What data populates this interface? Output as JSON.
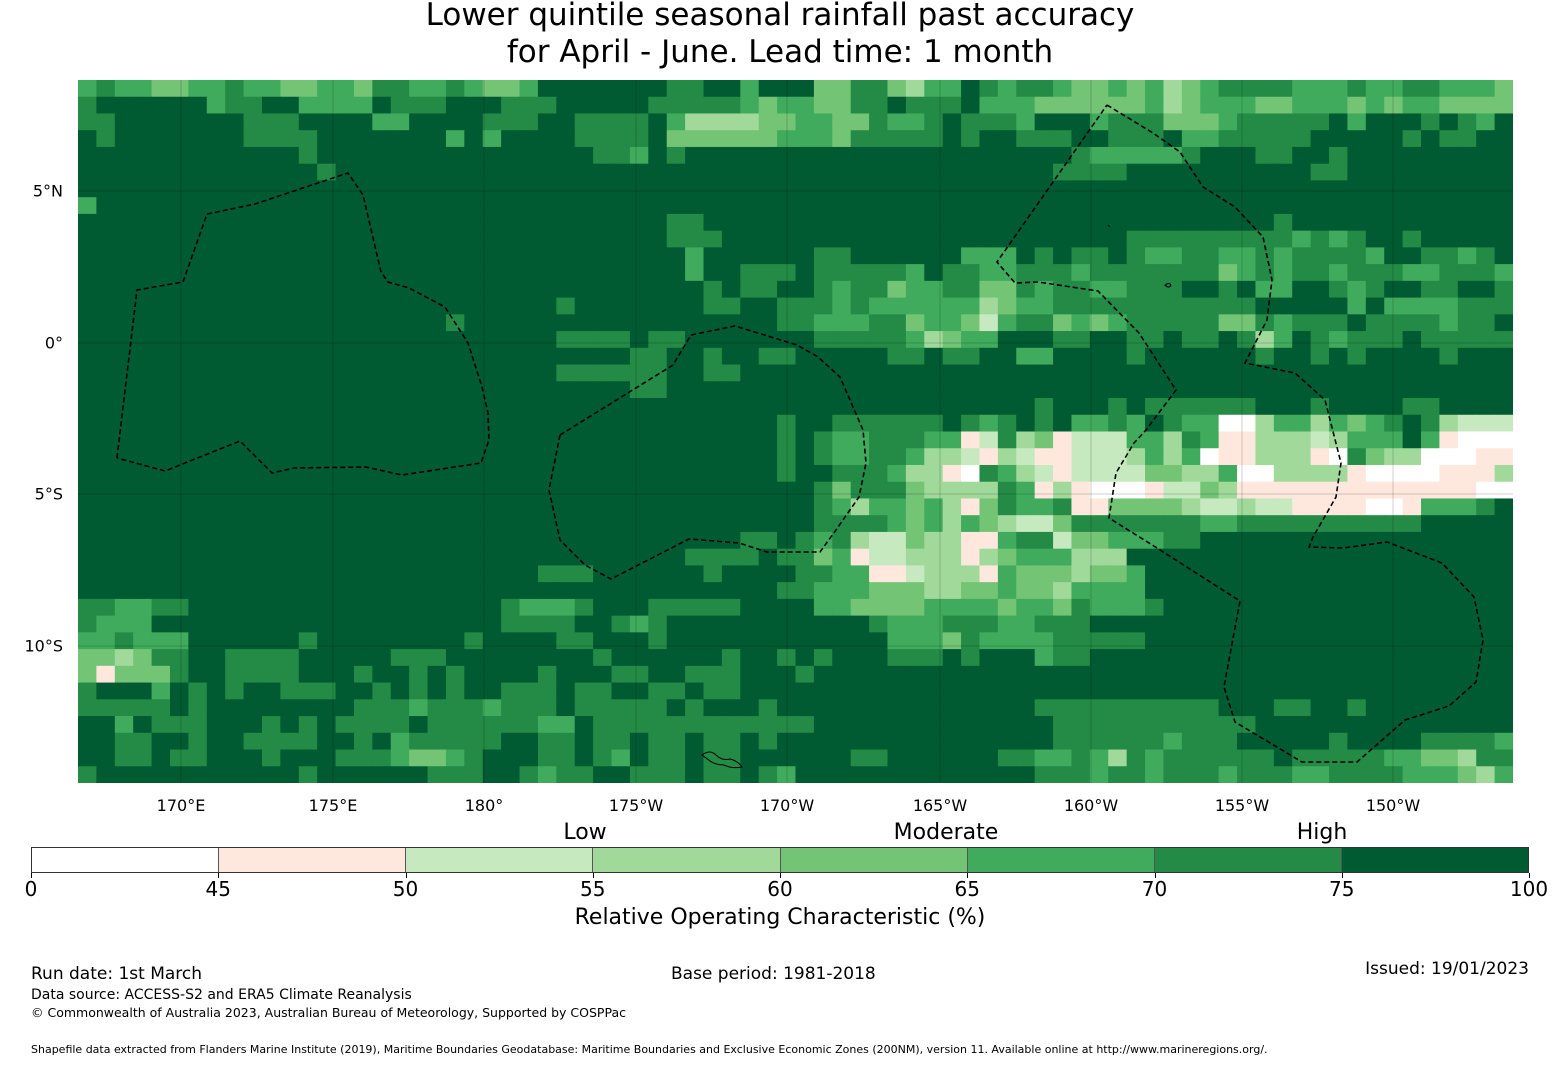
{
  "title": {
    "line1": "Lower quintile seasonal rainfall past accuracy",
    "line2": "for April - June. Lead time: 1 month"
  },
  "colorbar": {
    "ticks": [
      "0",
      "45",
      "50",
      "55",
      "60",
      "65",
      "70",
      "75",
      "100"
    ],
    "colors": [
      "#ffffff",
      "#fee8de",
      "#c7e9c0",
      "#a1d99b",
      "#74c476",
      "#41ab5d",
      "#238b45",
      "#005a32"
    ],
    "categories": {
      "low": "Low",
      "moderate": "Moderate",
      "high": "High"
    },
    "label": "Relative Operating Characteristic (%)"
  },
  "footer": {
    "run_date": "Run date: 1st March",
    "base_period": "Base period: 1981-2018",
    "issued": "Issued: 19/01/2023",
    "data_source": "Data source: ACCESS-S2 and ERA5 Climate Reanalysis",
    "copyright": "© Commonwealth of Australia 2023, Australian Bureau of Meteorology, Supported by COSPPac",
    "shapefile": "Shapefile data extracted from Flanders Marine Institute (2019), Maritime Boundaries Geodatabase: Maritime Boundaries and Exclusive Economic Zones (200NM), version 11. Available online at http://www.marineregions.org/."
  },
  "chart_data": {
    "type": "heatmap",
    "title": "Lower quintile seasonal rainfall past accuracy for April - June. Lead time: 1 month",
    "lat_ticks": [
      "5°N",
      "0°",
      "5°S",
      "10°S"
    ],
    "lon_ticks": [
      "170°E",
      "175°E",
      "180°",
      "175°W",
      "170°W",
      "165°W",
      "160°W",
      "155°W",
      "150°W"
    ],
    "bin_edges": [
      0,
      45,
      50,
      55,
      60,
      65,
      70,
      75,
      100
    ],
    "grid_note_bins": "each digit = colour bin index 0-7 (0: <45, 7: >=75); rows north to south, columns west to east",
    "grid": [
      "565544556554455466556544577777776677577744664355765665445453456666555655665554",
      "677777756677555576667776667777766666545544667666755544444453455544555454554444",
      "667777777666777755777766677666675333344554465567666577756664445666667577767657",
      "767777777666677777775757777666674444445554666667677666776667556666677777676677",
      "777777777777677777777777777766576777777777777777777777655555677766776777777777",
      "777777777777767777777777777777777777777777777777777776666777777777766777777777",
      "777777777777777777777777777777777777777777777777777777777777777777777777777777",
      "577777777777777777777777777777777777777777777777777777777777777777777777777777",
      "777777777777777777777777777777776677777777777777777777777777777776777777777777",
      "777777777777777777777777777777776667777777777777777777777666666666565677677777",
      "777777777777777777777777777777777577777766777777555767667655665565666657766567",
      "777777777777777777777777777777777577666766666576655666566666664565665666556665",
      "777777777777777777777777777777777767667765664556644656655666776755776567766776",
      "777777777777777777777777776777777766776665655555534556666666666677777575555666",
      "777777777777777777776777777777777777776655566455425664545666664465666766665667",
      "777777777777777777777777776666766777777766666534557776677667667635765666766666",
      "777777777777777777777777777777667767766777776676677557777677777767767677776777",
      "777777777777777777777777776666667766777777777777777777777777777777777777777777",
      "777777777777777777777777777777667777777777777777777777777777777777777777777777",
      "777777777777777777777777777777777777777777777777777767776766666677767777667777",
      "777777777777777777777777777777777777776776666667656767556576550035535456763222",
      "777777777777777777777777777777777777776765566655126341222553651133323555751000",
      "777777777777777777777777777777777777776765566533213211222353501133310643300011",
      "777777777777777777777777777777777777776776665331065321222244335003333100001113",
      "777777777777777777777777777777777777777764666433336513100012243111111111111100",
      "777777777777777777777777777777777777777765355453146556114444322322111100155567",
      "777777777777777777777777777777777777777766665453543224666666655666666666677777",
      "777777777777777777777777777777777777667656322433115662445556677777777777777777",
      "777777777777777777777777777777777666676645122333134555333777777777777777777777",
      "777777777777777777777777766677777767777665511233315444344577777777777777777777",
      "777777777777777777777777777777777777776655544433445443555577777777777777777777",
      "665566777777777777777776555677766666777755444455554554655567777777777777777777",
      "655577777777777777777776666776567777777777765556665566677777777777777777777777",
      "556555777777677777777677776677767777777777775554655556666677777777777777777777",
      "443466776666777776667777777767777776776767776667677756677777777777777777777777",
      "414446776666777677676777767776677666777677777777777777777777777777777777777777",
      "677757676776667767676776667667766766777777777777777777777777777777777777777777",
      "666667677777777666566656667666667677767777777777777766666666667776677677777777",
      "775766677767676666766666655766666666666677777777777776666666666677777777777777",
      "776677677666677675666667766766766766767777777777777776666665666777776777766665",
      "776676677767776665445677766765766766777777667777776655653656666667666665544366",
      "677777777777677777766677656677666766765777777777777766656656665666556666555435"
    ]
  }
}
